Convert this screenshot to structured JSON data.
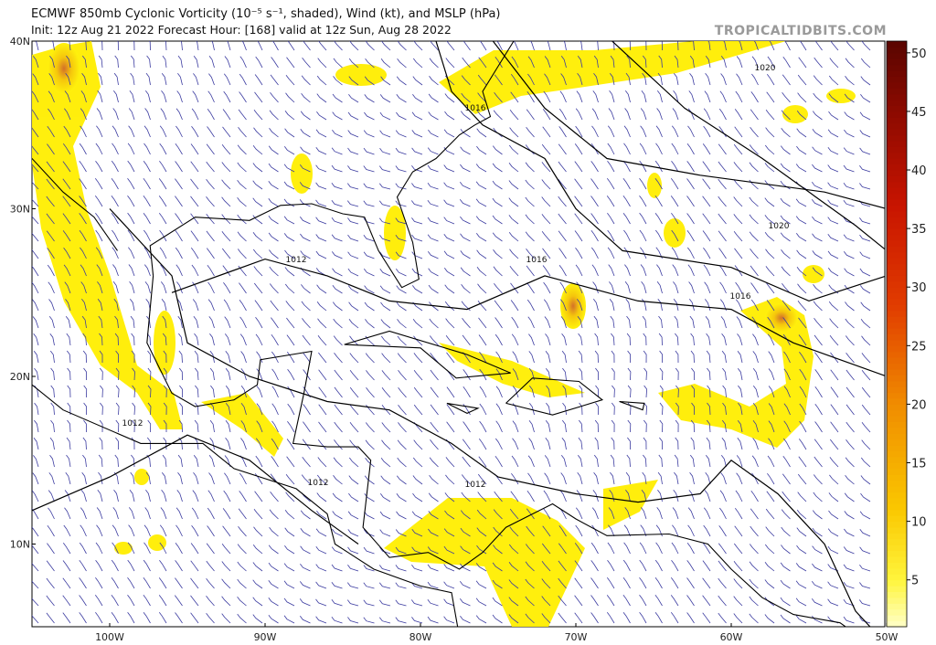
{
  "header": {
    "title": "ECMWF 850mb Cyclonic Vorticity (10⁻⁵ s⁻¹, shaded), Wind (kt), and MSLP (hPa)",
    "subtitle": "Init: 12z Aug 21 2022   Forecast Hour: [168]   valid at 12z Sun, Aug 28 2022",
    "site": "TROPICALTIDBITS.COM"
  },
  "map": {
    "lat_labels": [
      "40N",
      "30N",
      "20N",
      "10N"
    ],
    "lon_labels": [
      "100W",
      "90W",
      "80W",
      "70W",
      "60W",
      "50W"
    ],
    "isobar_labels": [
      "1020",
      "1016",
      "1020",
      "1016",
      "1016",
      "1012",
      "1012",
      "1012",
      "1012"
    ]
  },
  "colorbar": {
    "lim": [
      1,
      51
    ],
    "ticks": [
      5,
      10,
      15,
      20,
      25,
      30,
      35,
      40,
      45,
      50
    ]
  }
}
